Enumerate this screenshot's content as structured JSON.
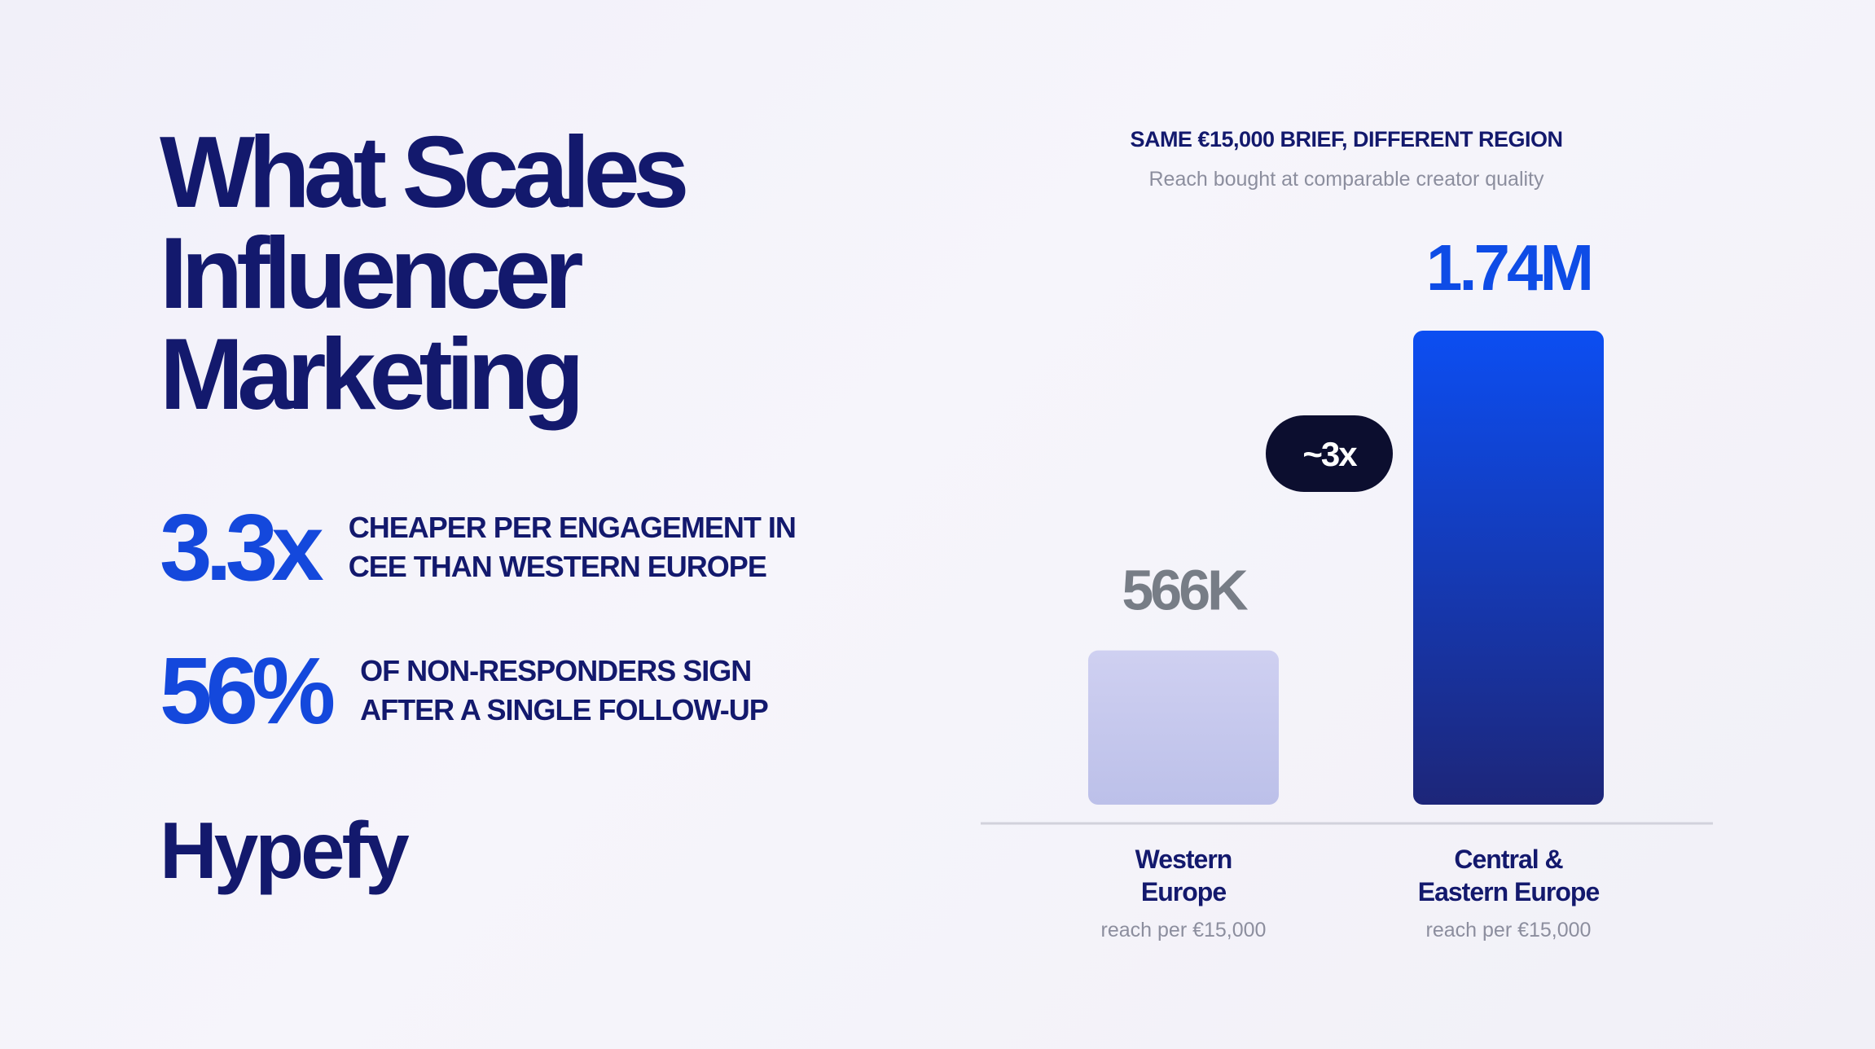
{
  "headline": {
    "lines": [
      "What Scales",
      "Influencer",
      "Marketing"
    ]
  },
  "stats": [
    {
      "value": "3.3x",
      "lines": [
        "CHEAPER PER ENGAGEMENT IN",
        "CEE THAN WESTERN EUROPE"
      ]
    },
    {
      "value": "56%",
      "lines": [
        "OF NON-RESPONDERS SIGN",
        "AFTER A SINGLE FOLLOW-UP"
      ]
    }
  ],
  "brand": "Hypefy",
  "chart_data": {
    "type": "bar",
    "title": "SAME €15,000 BRIEF, DIFFERENT REGION",
    "subtitle": "Reach bought at comparable creator quality",
    "categories": [
      {
        "lines": [
          "Western",
          "Europe"
        ],
        "sub": "reach per €15,000"
      },
      {
        "lines": [
          "Central &",
          "Eastern Europe"
        ],
        "sub": "reach per €15,000"
      }
    ],
    "values": [
      566000,
      1740000
    ],
    "data_labels": [
      "566K",
      "1.74M"
    ],
    "annotation": "~3x",
    "ylim": [
      0,
      1740000
    ],
    "grid": false,
    "colors": {
      "bar_western": [
        "#cfd0f1",
        "#bcc0e9"
      ],
      "bar_cee": [
        "#0c4ef2",
        "#1d2679"
      ],
      "label_western": "#777d86",
      "label_cee": "#0e4ce6",
      "badge": "#0c0e2f",
      "baseline": "#d2d2dc"
    }
  },
  "colors": {
    "navy": "#13196d",
    "accent_blue": "#1448dc",
    "muted": "#8c8e9e",
    "background": "#f3f2f9"
  }
}
